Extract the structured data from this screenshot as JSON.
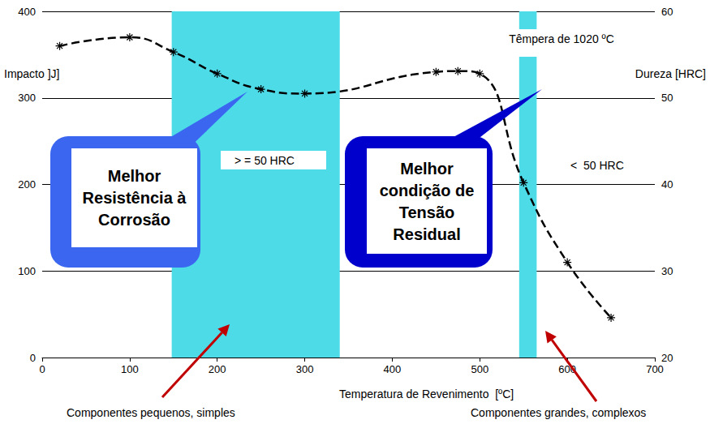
{
  "chart_data": {
    "type": "line",
    "xlabel": "Temperatura de Revenimento  [ºC]",
    "ylabel": "Impacto ]J]",
    "y2label": "Dureza [HRC]",
    "xlim": [
      0,
      700
    ],
    "xticks": [
      0,
      100,
      200,
      300,
      400,
      500,
      600,
      700
    ],
    "ylim": [
      0,
      400
    ],
    "yticks": [
      0,
      100,
      200,
      300,
      400
    ],
    "y2lim": [
      20,
      60
    ],
    "y2ticks": [
      20,
      30,
      40,
      50,
      60
    ],
    "grid": true,
    "x": [
      20,
      100,
      150,
      200,
      250,
      300,
      450,
      475,
      500,
      550,
      600,
      650
    ],
    "series": [
      {
        "color": "#000000",
        "line_style": "dashed",
        "marker": "star",
        "axis": "y2",
        "values": [
          56,
          57,
          55.3,
          52.8,
          51,
          50.5,
          53,
          53.1,
          52.8,
          40.2,
          31,
          24.6
        ]
      }
    ],
    "bands": [
      [
        148,
        340
      ],
      [
        545,
        565
      ]
    ],
    "callouts": [
      "Melhor\nResistência à\nCorrosão",
      "Melhor\ncondição de\nTensão\nResidual"
    ],
    "annotations": [
      "> = 50 HRC",
      "<  50 HRC",
      "Têmpera de 1020 ºC",
      "Componentes pequenos, simples",
      "Componentes grandes, complexos"
    ]
  }
}
